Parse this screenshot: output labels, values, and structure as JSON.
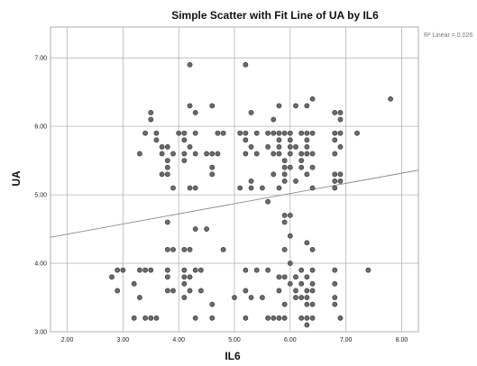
{
  "chart_data": {
    "type": "scatter",
    "title": "Simple Scatter with Fit Line of UA by IL6",
    "xlabel": "IL6",
    "ylabel": "UA",
    "xlim": [
      1.7,
      8.3
    ],
    "ylim": [
      3.0,
      7.45
    ],
    "x_ticks": [
      "2.00",
      "3.00",
      "4.00",
      "5.00",
      "6.00",
      "7.00",
      "8.00"
    ],
    "y_ticks": [
      "3.00",
      "4.00",
      "5.00",
      "6.00",
      "7.00"
    ],
    "grid": true,
    "fit_line": {
      "label": "R² Linear = 0.026",
      "x0": 1.7,
      "y0": 4.38,
      "x1": 8.3,
      "y1": 5.36
    },
    "points": [
      [
        4.2,
        6.9
      ],
      [
        5.2,
        6.9
      ],
      [
        7.8,
        6.4
      ],
      [
        3.5,
        6.2
      ],
      [
        4.2,
        6.3
      ],
      [
        4.6,
        6.3
      ],
      [
        5.8,
        6.3
      ],
      [
        6.4,
        6.4
      ],
      [
        6.3,
        6.3
      ],
      [
        6.1,
        6.3
      ],
      [
        3.5,
        6.1
      ],
      [
        4.3,
        6.2
      ],
      [
        5.3,
        6.2
      ],
      [
        5.7,
        6.1
      ],
      [
        6.8,
        6.2
      ],
      [
        6.9,
        6.2
      ],
      [
        6.9,
        6.1
      ],
      [
        3.4,
        5.9
      ],
      [
        3.6,
        5.9
      ],
      [
        4.0,
        5.9
      ],
      [
        4.1,
        5.9
      ],
      [
        4.3,
        5.9
      ],
      [
        4.7,
        5.9
      ],
      [
        4.8,
        5.9
      ],
      [
        5.1,
        5.9
      ],
      [
        5.2,
        5.9
      ],
      [
        5.4,
        5.9
      ],
      [
        5.6,
        5.9
      ],
      [
        5.7,
        5.9
      ],
      [
        5.8,
        5.9
      ],
      [
        5.9,
        5.9
      ],
      [
        6.0,
        5.9
      ],
      [
        6.2,
        5.9
      ],
      [
        6.3,
        5.9
      ],
      [
        6.4,
        5.9
      ],
      [
        6.8,
        5.9
      ],
      [
        6.9,
        5.9
      ],
      [
        7.2,
        5.9
      ],
      [
        3.6,
        5.8
      ],
      [
        4.1,
        5.8
      ],
      [
        5.2,
        5.8
      ],
      [
        5.8,
        5.8
      ],
      [
        6.0,
        5.8
      ],
      [
        6.3,
        5.8
      ],
      [
        6.8,
        5.8
      ],
      [
        3.7,
        5.7
      ],
      [
        3.8,
        5.7
      ],
      [
        4.2,
        5.7
      ],
      [
        5.3,
        5.7
      ],
      [
        5.6,
        5.7
      ],
      [
        5.8,
        5.7
      ],
      [
        6.0,
        5.7
      ],
      [
        6.1,
        5.7
      ],
      [
        6.3,
        5.7
      ],
      [
        6.9,
        5.7
      ],
      [
        3.3,
        5.6
      ],
      [
        3.7,
        5.6
      ],
      [
        3.9,
        5.6
      ],
      [
        4.1,
        5.6
      ],
      [
        4.3,
        5.6
      ],
      [
        4.5,
        5.6
      ],
      [
        4.6,
        5.6
      ],
      [
        4.7,
        5.6
      ],
      [
        5.2,
        5.6
      ],
      [
        5.4,
        5.6
      ],
      [
        5.7,
        5.6
      ],
      [
        5.8,
        5.6
      ],
      [
        6.0,
        5.6
      ],
      [
        6.2,
        5.6
      ],
      [
        6.3,
        5.6
      ],
      [
        6.4,
        5.6
      ],
      [
        6.8,
        5.6
      ],
      [
        3.8,
        5.5
      ],
      [
        4.1,
        5.5
      ],
      [
        5.9,
        5.5
      ],
      [
        6.2,
        5.5
      ],
      [
        3.8,
        5.4
      ],
      [
        4.6,
        5.4
      ],
      [
        5.9,
        5.4
      ],
      [
        6.0,
        5.4
      ],
      [
        6.2,
        5.4
      ],
      [
        6.4,
        5.4
      ],
      [
        3.7,
        5.3
      ],
      [
        3.8,
        5.3
      ],
      [
        4.6,
        5.3
      ],
      [
        5.7,
        5.3
      ],
      [
        5.9,
        5.3
      ],
      [
        6.3,
        5.3
      ],
      [
        6.8,
        5.3
      ],
      [
        6.9,
        5.3
      ],
      [
        5.3,
        5.2
      ],
      [
        5.9,
        5.2
      ],
      [
        6.1,
        5.2
      ],
      [
        6.9,
        5.2
      ],
      [
        6.8,
        5.2
      ],
      [
        3.9,
        5.1
      ],
      [
        4.2,
        5.1
      ],
      [
        4.3,
        5.1
      ],
      [
        5.1,
        5.1
      ],
      [
        5.3,
        5.1
      ],
      [
        5.5,
        5.1
      ],
      [
        5.8,
        5.1
      ],
      [
        6.4,
        5.1
      ],
      [
        6.8,
        5.1
      ],
      [
        5.6,
        4.9
      ],
      [
        5.9,
        4.7
      ],
      [
        6.0,
        4.7
      ],
      [
        3.8,
        4.6
      ],
      [
        5.9,
        4.6
      ],
      [
        4.3,
        4.5
      ],
      [
        4.5,
        4.5
      ],
      [
        6.0,
        4.4
      ],
      [
        3.8,
        4.2
      ],
      [
        3.9,
        4.2
      ],
      [
        4.1,
        4.2
      ],
      [
        4.2,
        4.2
      ],
      [
        4.8,
        4.2
      ],
      [
        5.9,
        4.2
      ],
      [
        6.3,
        4.3
      ],
      [
        6.4,
        4.2
      ],
      [
        6.0,
        4.0
      ],
      [
        2.8,
        3.8
      ],
      [
        2.9,
        3.9
      ],
      [
        3.0,
        3.9
      ],
      [
        3.3,
        3.9
      ],
      [
        3.4,
        3.9
      ],
      [
        3.5,
        3.9
      ],
      [
        3.8,
        3.9
      ],
      [
        4.1,
        3.9
      ],
      [
        4.3,
        3.9
      ],
      [
        4.4,
        3.9
      ],
      [
        5.2,
        3.9
      ],
      [
        5.4,
        3.9
      ],
      [
        5.6,
        3.9
      ],
      [
        6.2,
        3.9
      ],
      [
        6.4,
        3.9
      ],
      [
        6.8,
        3.9
      ],
      [
        7.4,
        3.9
      ],
      [
        3.8,
        3.8
      ],
      [
        4.1,
        3.8
      ],
      [
        4.2,
        3.8
      ],
      [
        5.8,
        3.8
      ],
      [
        5.9,
        3.8
      ],
      [
        6.1,
        3.8
      ],
      [
        6.3,
        3.8
      ],
      [
        3.2,
        3.7
      ],
      [
        4.1,
        3.7
      ],
      [
        6.0,
        3.7
      ],
      [
        6.2,
        3.7
      ],
      [
        6.4,
        3.7
      ],
      [
        6.8,
        3.7
      ],
      [
        2.9,
        3.6
      ],
      [
        3.8,
        3.6
      ],
      [
        3.9,
        3.6
      ],
      [
        4.2,
        3.6
      ],
      [
        4.4,
        3.6
      ],
      [
        5.2,
        3.6
      ],
      [
        5.8,
        3.6
      ],
      [
        6.1,
        3.6
      ],
      [
        6.3,
        3.6
      ],
      [
        6.4,
        3.6
      ],
      [
        3.3,
        3.5
      ],
      [
        4.1,
        3.5
      ],
      [
        5.0,
        3.5
      ],
      [
        5.3,
        3.5
      ],
      [
        5.5,
        3.5
      ],
      [
        6.1,
        3.5
      ],
      [
        6.2,
        3.5
      ],
      [
        6.3,
        3.5
      ],
      [
        6.8,
        3.5
      ],
      [
        4.6,
        3.4
      ],
      [
        5.9,
        3.4
      ],
      [
        6.3,
        3.4
      ],
      [
        6.4,
        3.4
      ],
      [
        6.8,
        3.4
      ],
      [
        3.2,
        3.2
      ],
      [
        3.4,
        3.2
      ],
      [
        3.5,
        3.2
      ],
      [
        3.6,
        3.2
      ],
      [
        4.3,
        3.2
      ],
      [
        4.6,
        3.2
      ],
      [
        5.2,
        3.2
      ],
      [
        5.6,
        3.2
      ],
      [
        5.7,
        3.2
      ],
      [
        5.8,
        3.2
      ],
      [
        5.9,
        3.2
      ],
      [
        6.2,
        3.2
      ],
      [
        6.3,
        3.2
      ],
      [
        6.4,
        3.2
      ],
      [
        6.9,
        3.2
      ],
      [
        6.3,
        3.1
      ]
    ]
  }
}
